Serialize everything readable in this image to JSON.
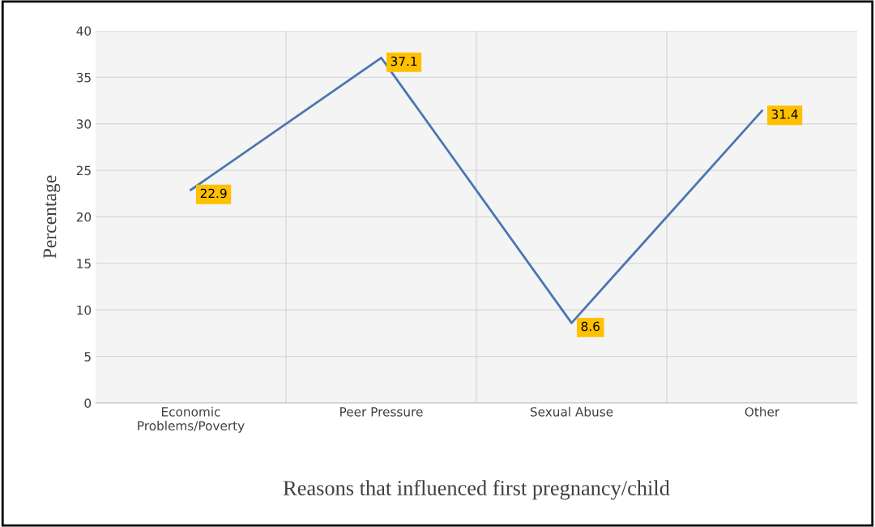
{
  "chart_data": {
    "type": "line",
    "xlabel": "Reasons that influenced first pregnancy/child",
    "ylabel": "Percentage",
    "categories": [
      "Economic\nProblems/Poverty",
      "Peer Pressure",
      "Sexual Abuse",
      "Other"
    ],
    "series": [
      {
        "color": "#4a76b0",
        "values": [
          22.9,
          37.1,
          8.6,
          31.4
        ]
      }
    ],
    "ylim": [
      0,
      40
    ],
    "yticks": [
      0,
      5,
      10,
      15,
      20,
      25,
      30,
      35,
      40
    ],
    "grid": true,
    "data_labels": true,
    "marker": "none",
    "line_style": "solid",
    "legend": false
  }
}
